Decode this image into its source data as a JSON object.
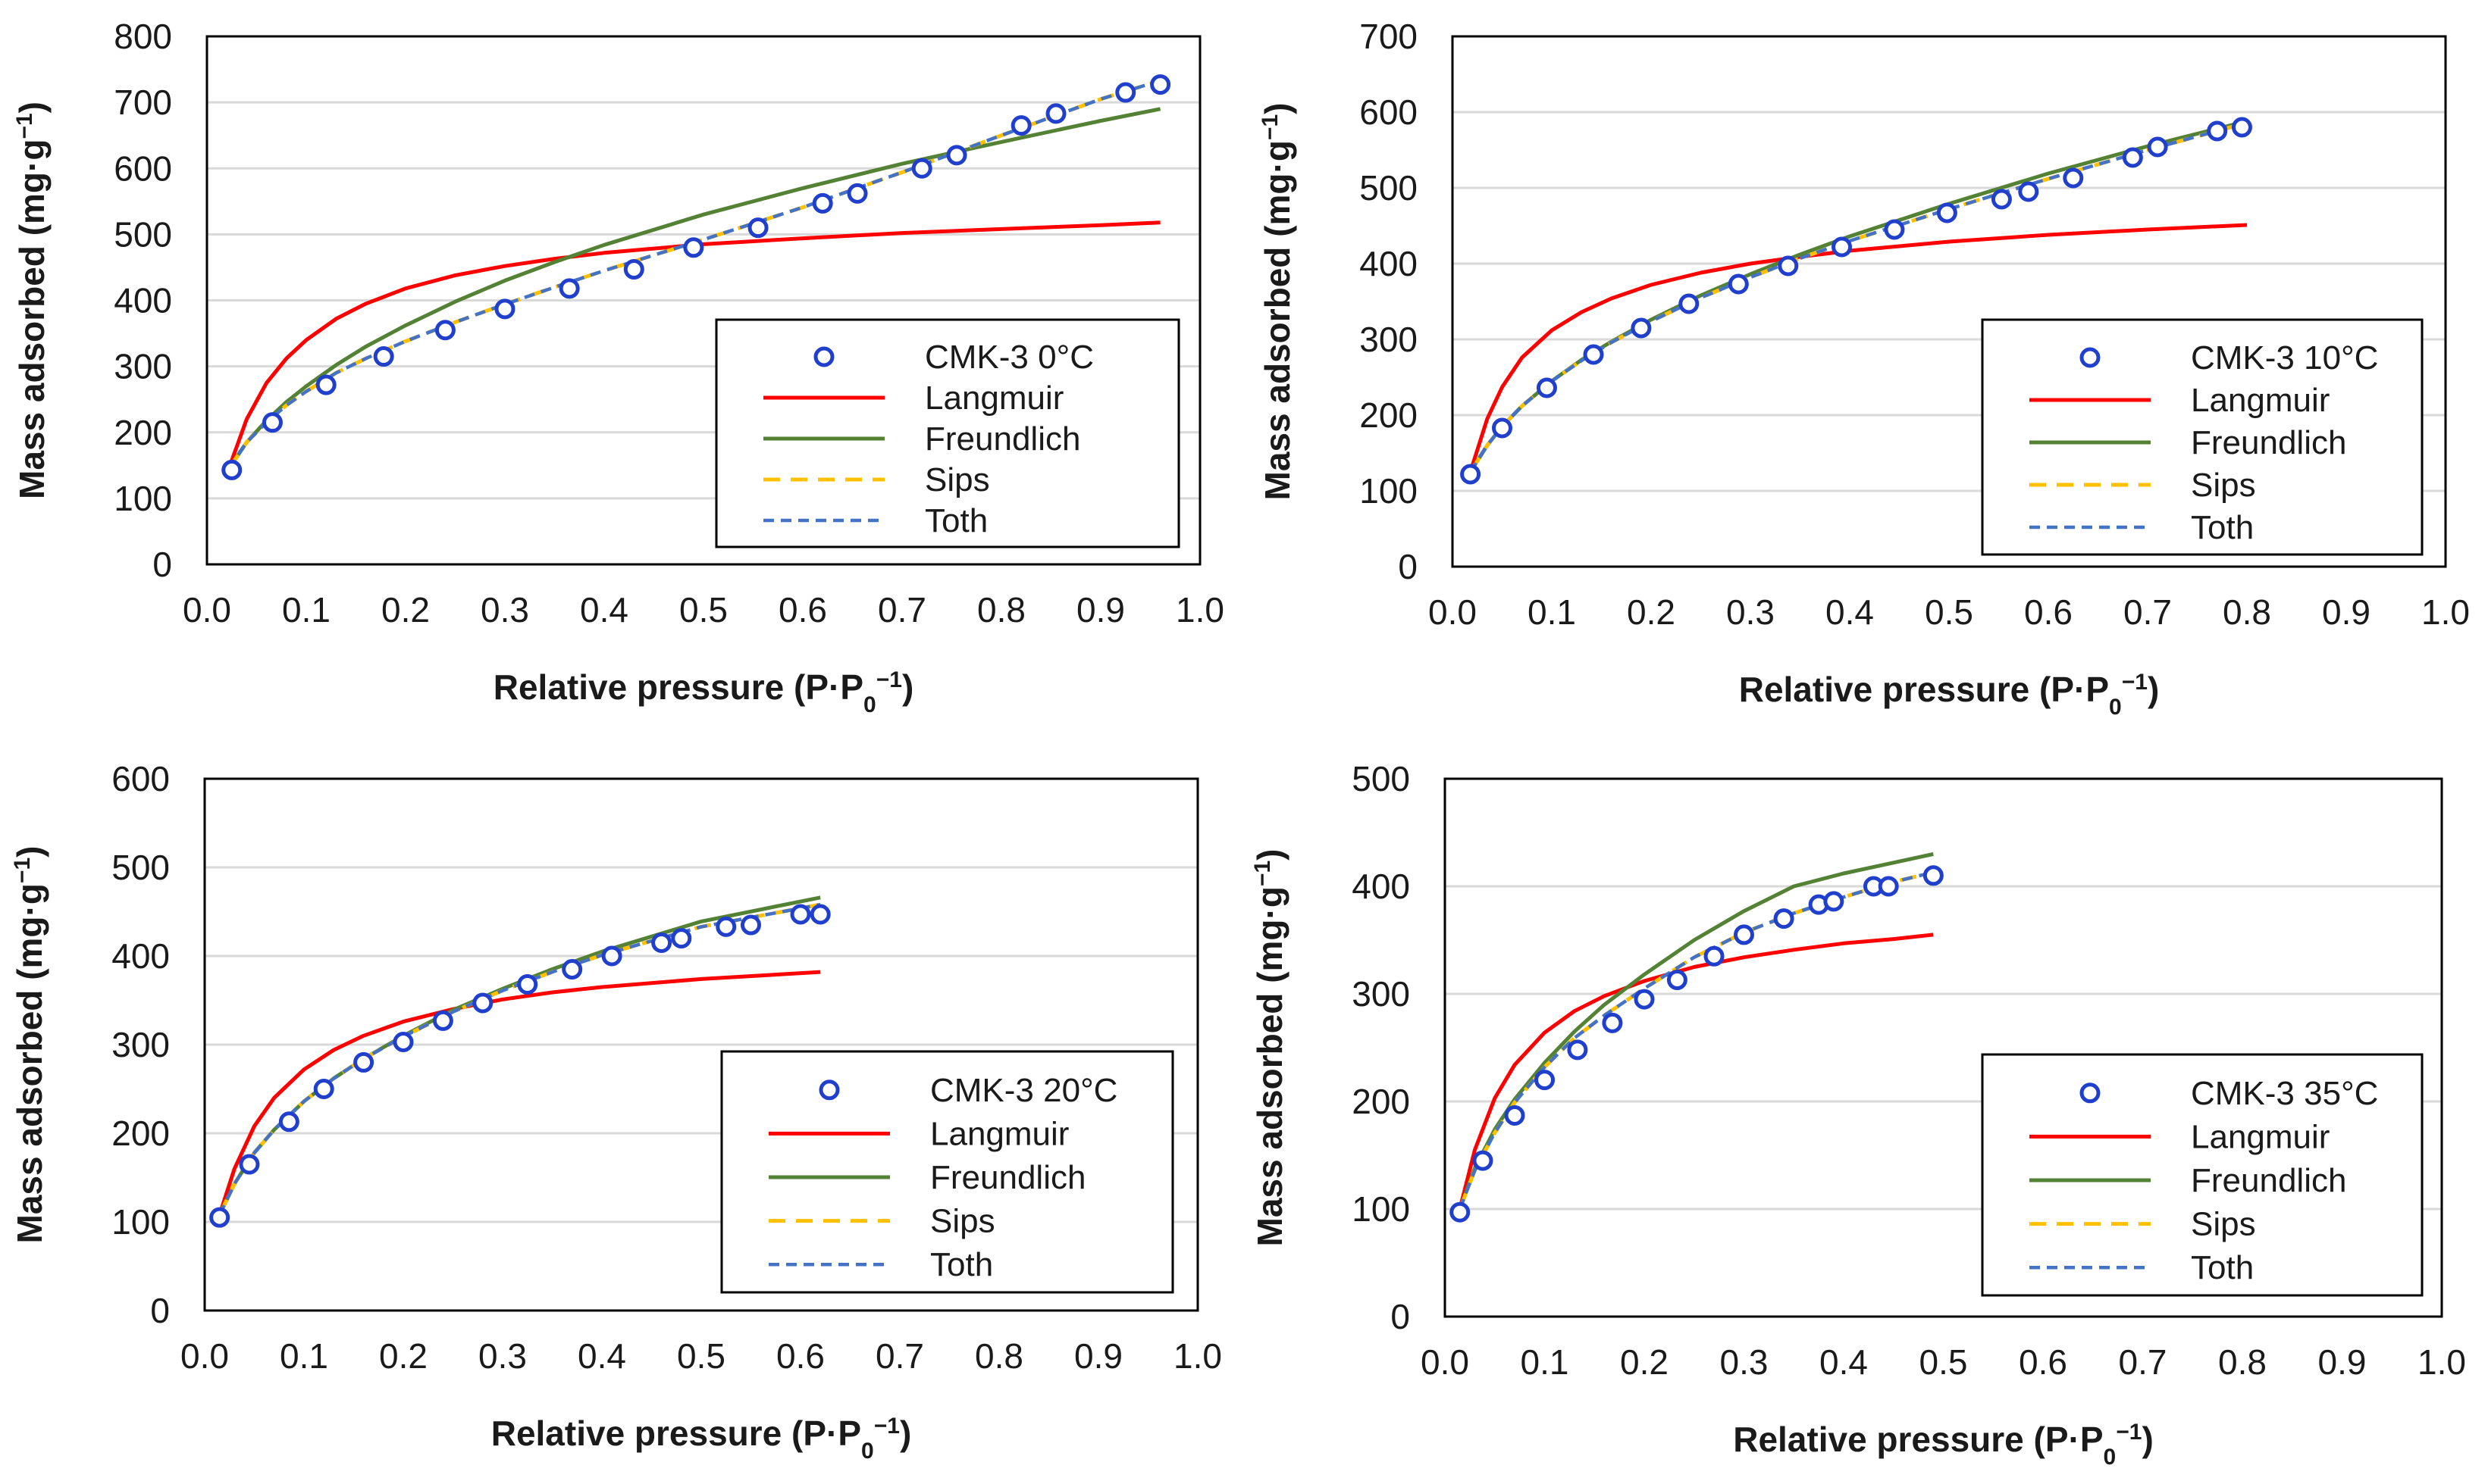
{
  "colors": {
    "data": "#1f3fcc",
    "langmuir": "#ff0000",
    "freundlich": "#548235",
    "sips": "#ffc000",
    "toth": "#4472c4",
    "grid": "#d9d9d9",
    "frame": "#000000"
  },
  "chart_data": [
    {
      "type": "scatter",
      "title": "",
      "xlabel": "Relative pressure (P·P",
      "xlabel_sub": "0",
      "xlabel_sup": "−1",
      "xlabel_close": ")",
      "ylabel": "Mass adsorbed (mg·g",
      "ylabel_sup": "−1",
      "ylabel_close": ")",
      "xlim": [
        0,
        1
      ],
      "ylim": [
        0,
        800
      ],
      "xticks": [
        0.0,
        0.1,
        0.2,
        0.3,
        0.4,
        0.5,
        0.6,
        0.7,
        0.8,
        0.9,
        1.0
      ],
      "xtick_labels": [
        "0.0",
        "0.1",
        "0.2",
        "0.3",
        "0.4",
        "0.5",
        "0.6",
        "0.7",
        "0.8",
        "0.9",
        "1.0"
      ],
      "yticks": [
        0,
        100,
        200,
        300,
        400,
        500,
        600,
        700,
        800
      ],
      "ytick_labels": [
        "0",
        "100",
        "200",
        "300",
        "400",
        "500",
        "600",
        "700",
        "800"
      ],
      "grid": true,
      "legend": "bottom-right",
      "legend_labels": [
        "CMK-3 0°C",
        "Langmuir",
        "Freundlich",
        "Sips",
        "Toth"
      ],
      "series": [
        {
          "name": "CMK-3 0°C",
          "kind": "points",
          "x": [
            0.025,
            0.066,
            0.12,
            0.178,
            0.24,
            0.3,
            0.365,
            0.43,
            0.49,
            0.555,
            0.62,
            0.655,
            0.72,
            0.755,
            0.82,
            0.855,
            0.925,
            0.96
          ],
          "y": [
            143,
            215,
            272,
            315,
            355,
            387,
            418,
            447,
            480,
            510,
            547,
            562,
            600,
            620,
            665,
            683,
            715,
            727
          ]
        },
        {
          "name": "Langmuir",
          "kind": "line",
          "x": [
            0.022,
            0.04,
            0.06,
            0.08,
            0.1,
            0.13,
            0.16,
            0.2,
            0.25,
            0.3,
            0.35,
            0.4,
            0.5,
            0.6,
            0.7,
            0.8,
            0.9,
            0.96
          ],
          "y": [
            145,
            220,
            275,
            312,
            340,
            372,
            395,
            418,
            438,
            452,
            463,
            472,
            485,
            494,
            502,
            508,
            514,
            518
          ]
        },
        {
          "name": "Freundlich",
          "kind": "line",
          "x": [
            0.022,
            0.04,
            0.06,
            0.08,
            0.1,
            0.13,
            0.16,
            0.2,
            0.25,
            0.3,
            0.35,
            0.4,
            0.5,
            0.6,
            0.7,
            0.8,
            0.9,
            0.96
          ],
          "y": [
            145,
            185,
            218,
            246,
            270,
            302,
            330,
            362,
            398,
            430,
            458,
            484,
            530,
            570,
            607,
            640,
            672,
            690
          ]
        },
        {
          "name": "Sips",
          "kind": "dashed",
          "x": [
            0.022,
            0.04,
            0.06,
            0.08,
            0.1,
            0.13,
            0.16,
            0.2,
            0.25,
            0.3,
            0.35,
            0.4,
            0.5,
            0.6,
            0.7,
            0.8,
            0.9,
            0.96
          ],
          "y": [
            145,
            185,
            215,
            241,
            262,
            290,
            312,
            338,
            367,
            394,
            420,
            445,
            492,
            541,
            594,
            650,
            705,
            733
          ]
        },
        {
          "name": "Toth",
          "kind": "dashed",
          "x": [
            0.022,
            0.04,
            0.06,
            0.08,
            0.1,
            0.13,
            0.16,
            0.2,
            0.25,
            0.3,
            0.35,
            0.4,
            0.5,
            0.6,
            0.7,
            0.8,
            0.9,
            0.96
          ],
          "y": [
            145,
            185,
            215,
            241,
            262,
            290,
            312,
            338,
            367,
            394,
            420,
            445,
            492,
            541,
            594,
            650,
            705,
            733
          ]
        }
      ]
    },
    {
      "type": "scatter",
      "title": "",
      "xlabel": "Relative pressure (P·P",
      "xlabel_sub": "0",
      "xlabel_sup": "−1",
      "xlabel_close": ")",
      "ylabel": "Mass adsorbed (mg·g",
      "ylabel_sup": "−1",
      "ylabel_close": ")",
      "xlim": [
        0,
        1
      ],
      "ylim": [
        0,
        700
      ],
      "xticks": [
        0.0,
        0.1,
        0.2,
        0.3,
        0.4,
        0.5,
        0.6,
        0.7,
        0.8,
        0.9,
        1.0
      ],
      "xtick_labels": [
        "0.0",
        "0.1",
        "0.2",
        "0.3",
        "0.4",
        "0.5",
        "0.6",
        "0.7",
        "0.8",
        "0.9",
        "1.0"
      ],
      "yticks": [
        0,
        100,
        200,
        300,
        400,
        500,
        600,
        700
      ],
      "ytick_labels": [
        "0",
        "100",
        "200",
        "300",
        "400",
        "500",
        "600",
        "700"
      ],
      "grid": true,
      "legend": "bottom-right",
      "legend_labels": [
        "CMK-3 10°C",
        "Langmuir",
        "Freundlich",
        "Sips",
        "Toth"
      ],
      "series": [
        {
          "name": "CMK-3 10°C",
          "kind": "points",
          "x": [
            0.018,
            0.05,
            0.095,
            0.142,
            0.19,
            0.238,
            0.288,
            0.338,
            0.392,
            0.445,
            0.498,
            0.553,
            0.58,
            0.625,
            0.685,
            0.71,
            0.77,
            0.795
          ],
          "y": [
            122,
            183,
            236,
            280,
            315,
            347,
            373,
            397,
            422,
            445,
            467,
            485,
            495,
            513,
            540,
            554,
            575,
            580
          ]
        },
        {
          "name": "Langmuir",
          "kind": "line",
          "x": [
            0.018,
            0.035,
            0.05,
            0.07,
            0.1,
            0.13,
            0.16,
            0.2,
            0.25,
            0.3,
            0.35,
            0.4,
            0.5,
            0.6,
            0.7,
            0.8
          ],
          "y": [
            125,
            195,
            237,
            276,
            312,
            336,
            354,
            372,
            388,
            400,
            409,
            417,
            429,
            438,
            445,
            451
          ]
        },
        {
          "name": "Freundlich",
          "kind": "line",
          "x": [
            0.018,
            0.035,
            0.05,
            0.07,
            0.1,
            0.13,
            0.16,
            0.2,
            0.25,
            0.3,
            0.35,
            0.4,
            0.5,
            0.6,
            0.7,
            0.8
          ],
          "y": [
            125,
            160,
            185,
            212,
            245,
            273,
            297,
            326,
            358,
            386,
            412,
            436,
            479,
            519,
            555,
            588
          ]
        },
        {
          "name": "Sips",
          "kind": "dashed",
          "x": [
            0.018,
            0.035,
            0.05,
            0.07,
            0.1,
            0.13,
            0.16,
            0.2,
            0.25,
            0.3,
            0.35,
            0.4,
            0.5,
            0.6,
            0.7,
            0.8
          ],
          "y": [
            125,
            160,
            185,
            212,
            245,
            272,
            296,
            324,
            355,
            382,
            407,
            430,
            472,
            512,
            550,
            586
          ]
        },
        {
          "name": "Toth",
          "kind": "dashed",
          "x": [
            0.018,
            0.035,
            0.05,
            0.07,
            0.1,
            0.13,
            0.16,
            0.2,
            0.25,
            0.3,
            0.35,
            0.4,
            0.5,
            0.6,
            0.7,
            0.8
          ],
          "y": [
            125,
            160,
            185,
            212,
            245,
            272,
            296,
            324,
            355,
            382,
            407,
            430,
            472,
            512,
            550,
            586
          ]
        }
      ]
    },
    {
      "type": "scatter",
      "title": "",
      "xlabel": "Relative pressure (P·P",
      "xlabel_sub": "0",
      "xlabel_sup": "−1",
      "xlabel_close": ")",
      "ylabel": "Mass adsorbed (mg·g",
      "ylabel_sup": "−1",
      "ylabel_close": ")",
      "xlim": [
        0,
        1
      ],
      "ylim": [
        0,
        600
      ],
      "xticks": [
        0.0,
        0.1,
        0.2,
        0.3,
        0.4,
        0.5,
        0.6,
        0.7,
        0.8,
        0.9,
        1.0
      ],
      "xtick_labels": [
        "0.0",
        "0.1",
        "0.2",
        "0.3",
        "0.4",
        "0.5",
        "0.6",
        "0.7",
        "0.8",
        "0.9",
        "1.0"
      ],
      "yticks": [
        0,
        100,
        200,
        300,
        400,
        500,
        600
      ],
      "ytick_labels": [
        "0",
        "100",
        "200",
        "300",
        "400",
        "500",
        "600"
      ],
      "grid": true,
      "legend": "bottom-right",
      "legend_labels": [
        "CMK-3 20°C",
        "Langmuir",
        "Freundlich",
        "Sips",
        "Toth"
      ],
      "series": [
        {
          "name": "CMK-3 20°C",
          "kind": "points",
          "x": [
            0.015,
            0.045,
            0.085,
            0.12,
            0.16,
            0.2,
            0.24,
            0.28,
            0.325,
            0.37,
            0.41,
            0.46,
            0.48,
            0.525,
            0.55,
            0.6,
            0.62
          ],
          "y": [
            105,
            165,
            213,
            250,
            280,
            303,
            327,
            347,
            368,
            385,
            400,
            415,
            420,
            433,
            435,
            447,
            447
          ]
        },
        {
          "name": "Langmuir",
          "kind": "line",
          "x": [
            0.015,
            0.03,
            0.05,
            0.07,
            0.1,
            0.13,
            0.16,
            0.2,
            0.25,
            0.3,
            0.35,
            0.4,
            0.5,
            0.62
          ],
          "y": [
            108,
            160,
            208,
            240,
            272,
            294,
            310,
            326,
            340,
            351,
            359,
            365,
            374,
            382
          ]
        },
        {
          "name": "Freundlich",
          "kind": "line",
          "x": [
            0.015,
            0.03,
            0.05,
            0.07,
            0.1,
            0.13,
            0.16,
            0.2,
            0.25,
            0.3,
            0.35,
            0.4,
            0.5,
            0.62
          ],
          "y": [
            108,
            143,
            178,
            204,
            236,
            262,
            284,
            310,
            339,
            363,
            385,
            405,
            439,
            466
          ]
        },
        {
          "name": "Sips",
          "kind": "dashed",
          "x": [
            0.015,
            0.03,
            0.05,
            0.07,
            0.1,
            0.13,
            0.16,
            0.2,
            0.25,
            0.3,
            0.35,
            0.4,
            0.5,
            0.62
          ],
          "y": [
            108,
            143,
            178,
            204,
            236,
            262,
            284,
            309,
            337,
            361,
            382,
            401,
            433,
            458
          ]
        },
        {
          "name": "Toth",
          "kind": "dashed",
          "x": [
            0.015,
            0.03,
            0.05,
            0.07,
            0.1,
            0.13,
            0.16,
            0.2,
            0.25,
            0.3,
            0.35,
            0.4,
            0.5,
            0.62
          ],
          "y": [
            108,
            143,
            178,
            204,
            236,
            262,
            284,
            309,
            337,
            361,
            382,
            401,
            433,
            458
          ]
        }
      ]
    },
    {
      "type": "scatter",
      "title": "",
      "xlabel": "Relative pressure (P·P",
      "xlabel_sub": "0",
      "xlabel_sup": "−1",
      "xlabel_close": ")",
      "ylabel": "Mass adsorbed (mg·g",
      "ylabel_sup": "−1",
      "ylabel_close": ")",
      "xlim": [
        0,
        1
      ],
      "ylim": [
        0,
        500
      ],
      "xticks": [
        0.0,
        0.1,
        0.2,
        0.3,
        0.4,
        0.5,
        0.6,
        0.7,
        0.8,
        0.9,
        1.0
      ],
      "xtick_labels": [
        "0.0",
        "0.1",
        "0.2",
        "0.3",
        "0.4",
        "0.5",
        "0.6",
        "0.7",
        "0.8",
        "0.9",
        "1.0"
      ],
      "yticks": [
        0,
        100,
        200,
        300,
        400,
        500
      ],
      "ytick_labels": [
        "0",
        "100",
        "200",
        "300",
        "400",
        "500"
      ],
      "grid": true,
      "legend": "bottom-right",
      "legend_labels": [
        "CMK-3 35°C",
        "Langmuir",
        "Freundlich",
        "Sips",
        "Toth"
      ],
      "series": [
        {
          "name": "CMK-3 35°C",
          "kind": "points",
          "x": [
            0.015,
            0.038,
            0.07,
            0.1,
            0.133,
            0.168,
            0.2,
            0.233,
            0.27,
            0.3,
            0.34,
            0.375,
            0.39,
            0.43,
            0.445,
            0.49
          ],
          "y": [
            97,
            145,
            187,
            220,
            248,
            273,
            295,
            313,
            335,
            355,
            370,
            383,
            386,
            400,
            400,
            410
          ]
        },
        {
          "name": "Langmuir",
          "kind": "line",
          "x": [
            0.015,
            0.03,
            0.05,
            0.07,
            0.1,
            0.13,
            0.16,
            0.2,
            0.25,
            0.3,
            0.35,
            0.4,
            0.45,
            0.49
          ],
          "y": [
            100,
            155,
            203,
            234,
            264,
            284,
            298,
            312,
            325,
            334,
            341,
            347,
            351,
            355
          ]
        },
        {
          "name": "Freundlich",
          "kind": "line",
          "x": [
            0.015,
            0.03,
            0.05,
            0.07,
            0.1,
            0.13,
            0.16,
            0.2,
            0.25,
            0.3,
            0.35,
            0.4,
            0.45,
            0.49
          ],
          "y": [
            100,
            138,
            174,
            202,
            236,
            265,
            290,
            318,
            350,
            377,
            400,
            412,
            422,
            430
          ]
        },
        {
          "name": "Sips",
          "kind": "dashed",
          "x": [
            0.015,
            0.03,
            0.05,
            0.07,
            0.1,
            0.13,
            0.16,
            0.2,
            0.25,
            0.3,
            0.35,
            0.4,
            0.45,
            0.49
          ],
          "y": [
            100,
            136,
            171,
            199,
            232,
            259,
            280,
            305,
            334,
            357,
            375,
            390,
            404,
            413
          ]
        },
        {
          "name": "Toth",
          "kind": "dashed",
          "x": [
            0.015,
            0.03,
            0.05,
            0.07,
            0.1,
            0.13,
            0.16,
            0.2,
            0.25,
            0.3,
            0.35,
            0.4,
            0.45,
            0.49
          ],
          "y": [
            100,
            136,
            171,
            199,
            232,
            259,
            280,
            305,
            334,
            357,
            375,
            390,
            404,
            413
          ]
        }
      ]
    }
  ]
}
